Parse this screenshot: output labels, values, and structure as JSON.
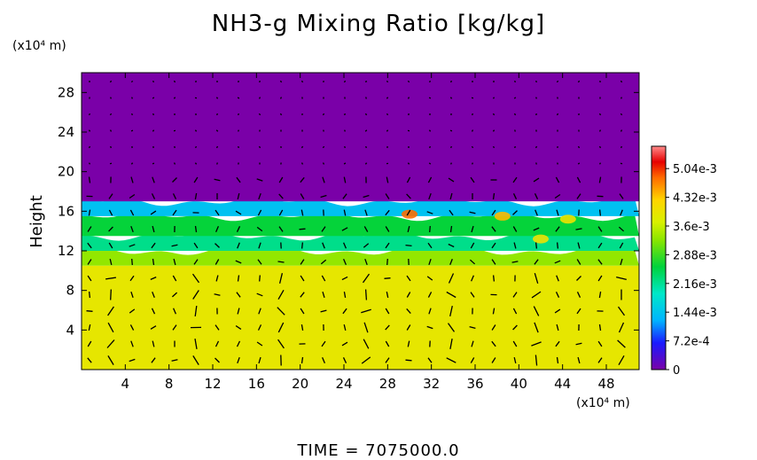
{
  "chart_data": {
    "type": "heatmap",
    "title": "NH3-g Mixing Ratio [kg/kg]",
    "ylabel": "Height",
    "x_unit": "(x10⁴ m)",
    "y_unit": "(x10⁴ m)",
    "footer": "TIME  =  7075000.0",
    "xlim": [
      0,
      51
    ],
    "ylim": [
      0,
      30
    ],
    "x_ticks": [
      4,
      8,
      12,
      16,
      20,
      24,
      28,
      32,
      36,
      40,
      44,
      48
    ],
    "y_ticks": [
      4,
      8,
      12,
      16,
      20,
      24,
      28
    ],
    "colorbar": {
      "range": [
        0,
        0.0056
      ],
      "tick_values": [
        0,
        0.00072,
        0.00144,
        0.00216,
        0.00288,
        0.0036,
        0.00432,
        0.00504
      ],
      "tick_labels": [
        "0",
        "7.2e-4",
        "1.44e-3",
        "2.16e-3",
        "2.88e-3",
        "3.6e-3",
        "4.32e-3",
        "5.04e-3"
      ]
    },
    "field_layers": [
      {
        "height_range": [
          0,
          10.5
        ],
        "value": 0.0039
      },
      {
        "height_range": [
          10.5,
          12
        ],
        "value": 0.0033
      },
      {
        "height_range": [
          12,
          13.5
        ],
        "value": 0.0022
      },
      {
        "height_range": [
          13.5,
          15.5
        ],
        "value": 0.0026
      },
      {
        "height_range": [
          15.5,
          17
        ],
        "value": 0.0014
      },
      {
        "height_range": [
          17,
          30
        ],
        "value": 0.0
      }
    ],
    "hotspots": [
      {
        "x": 30,
        "y": 15.7,
        "value": 0.0048
      },
      {
        "x": 38.5,
        "y": 15.5,
        "value": 0.0044
      },
      {
        "x": 42,
        "y": 13.2,
        "value": 0.004
      },
      {
        "x": 44.5,
        "y": 15.2,
        "value": 0.004
      }
    ],
    "wind_vectors": "present"
  }
}
